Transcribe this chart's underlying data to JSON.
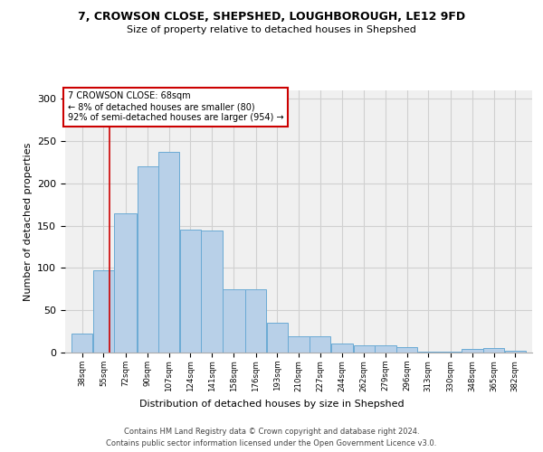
{
  "title1": "7, CROWSON CLOSE, SHEPSHED, LOUGHBOROUGH, LE12 9FD",
  "title2": "Size of property relative to detached houses in Shepshed",
  "xlabel": "Distribution of detached houses by size in Shepshed",
  "ylabel": "Number of detached properties",
  "footer1": "Contains HM Land Registry data © Crown copyright and database right 2024.",
  "footer2": "Contains public sector information licensed under the Open Government Licence v3.0.",
  "annotation_line1": "7 CROWSON CLOSE: 68sqm",
  "annotation_line2": "← 8% of detached houses are smaller (80)",
  "annotation_line3": "92% of semi-detached houses are larger (954) →",
  "bar_left_edges": [
    38,
    55,
    72,
    90,
    107,
    124,
    141,
    158,
    176,
    193,
    210,
    227,
    244,
    262,
    279,
    296,
    313,
    330,
    348,
    365,
    382
  ],
  "bar_widths": [
    17,
    17,
    18,
    17,
    17,
    17,
    17,
    18,
    17,
    17,
    17,
    17,
    18,
    17,
    17,
    17,
    17,
    18,
    17,
    17,
    17
  ],
  "bar_heights": [
    22,
    97,
    165,
    220,
    237,
    145,
    144,
    75,
    75,
    35,
    19,
    19,
    11,
    9,
    9,
    6,
    1,
    1,
    4,
    5,
    2
  ],
  "bar_color": "#b8d0e8",
  "bar_edge_color": "#6aaad4",
  "vline_color": "#cc0000",
  "vline_x": 68,
  "annotation_box_color": "#cc0000",
  "ylim": [
    0,
    310
  ],
  "yticks": [
    0,
    50,
    100,
    150,
    200,
    250,
    300
  ],
  "tick_labels": [
    "38sqm",
    "55sqm",
    "72sqm",
    "90sqm",
    "107sqm",
    "124sqm",
    "141sqm",
    "158sqm",
    "176sqm",
    "193sqm",
    "210sqm",
    "227sqm",
    "244sqm",
    "262sqm",
    "279sqm",
    "296sqm",
    "313sqm",
    "330sqm",
    "348sqm",
    "365sqm",
    "382sqm"
  ],
  "grid_color": "#d0d0d0",
  "bg_color": "#f0f0f0"
}
